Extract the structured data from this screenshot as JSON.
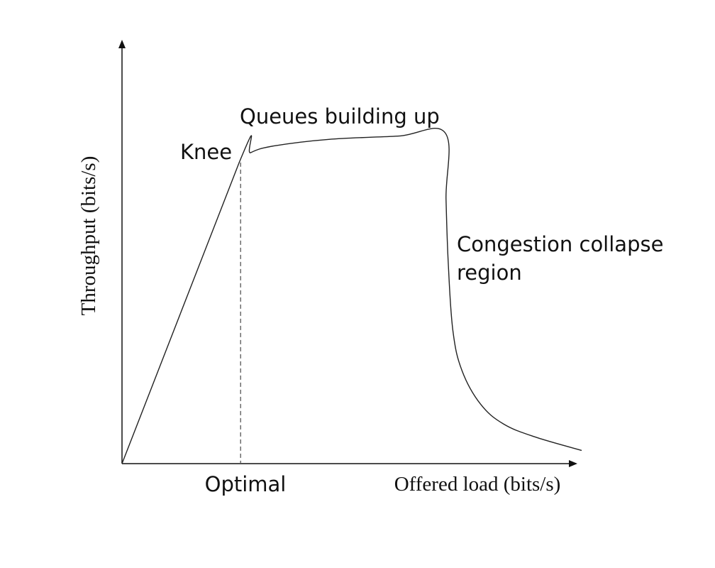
{
  "chart_data": {
    "type": "line",
    "xlabel": "Offered load (bits/s)",
    "ylabel": "Throughput (bits/s)",
    "x_tick_label": "Optimal",
    "annotations": {
      "knee": "Knee",
      "queues": "Queues building up",
      "collapse_line1": "Congestion collapse",
      "collapse_line2": "region"
    },
    "series": [
      {
        "x": [
          0,
          0.255,
          0.28,
          0.33,
          0.45,
          0.6,
          0.703,
          0.705,
          0.71,
          0.72,
          0.74,
          0.78,
          0.83,
          0.9,
          1.0
        ],
        "values": [
          0,
          0.91,
          0.94,
          0.96,
          0.98,
          0.99,
          1.0,
          0.8,
          0.6,
          0.4,
          0.28,
          0.18,
          0.12,
          0.08,
          0.04
        ]
      }
    ],
    "xlim": [
      0,
      1
    ],
    "ylim": [
      0,
      1
    ],
    "grid": false
  }
}
